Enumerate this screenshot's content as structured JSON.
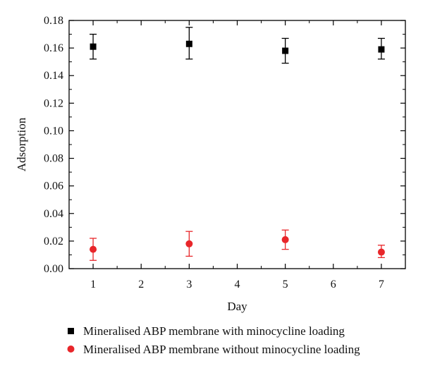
{
  "chart_data": {
    "type": "scatter",
    "title": "",
    "xlabel": "Day",
    "ylabel": "Adsorption",
    "xlim": [
      0.5,
      7.5
    ],
    "ylim": [
      0,
      0.18
    ],
    "x_ticks": [
      1,
      2,
      3,
      4,
      5,
      6,
      7
    ],
    "y_ticks": [
      "0.00",
      "0.02",
      "0.04",
      "0.06",
      "0.08",
      "0.10",
      "0.12",
      "0.14",
      "0.16",
      "0.18"
    ],
    "grid": false,
    "legend_position": "bottom",
    "series": [
      {
        "name": "Mineralised ABP membrane with minocycline loading",
        "marker": "square",
        "color": "#000000",
        "points": [
          {
            "x": 1,
            "y": 0.161,
            "err_low": 0.152,
            "err_high": 0.17
          },
          {
            "x": 3,
            "y": 0.163,
            "err_low": 0.152,
            "err_high": 0.175
          },
          {
            "x": 5,
            "y": 0.158,
            "err_low": 0.149,
            "err_high": 0.167
          },
          {
            "x": 7,
            "y": 0.159,
            "err_low": 0.152,
            "err_high": 0.167
          }
        ]
      },
      {
        "name": "Mineralised ABP membrane without minocycline loading",
        "marker": "circle",
        "color": "#e8262a",
        "points": [
          {
            "x": 1,
            "y": 0.014,
            "err_low": 0.006,
            "err_high": 0.022
          },
          {
            "x": 3,
            "y": 0.018,
            "err_low": 0.009,
            "err_high": 0.027
          },
          {
            "x": 5,
            "y": 0.021,
            "err_low": 0.014,
            "err_high": 0.028
          },
          {
            "x": 7,
            "y": 0.012,
            "err_low": 0.008,
            "err_high": 0.017
          }
        ]
      }
    ]
  }
}
